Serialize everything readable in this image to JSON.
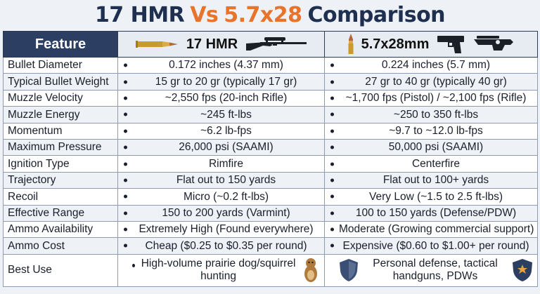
{
  "title": {
    "part1": "17 HMR",
    "vs": "Vs",
    "part2": "5.7x28",
    "part3": "Comparison"
  },
  "columns": {
    "feature": "Feature",
    "hmr": "17 HMR",
    "fn": "5.7x28mm"
  },
  "icons": {
    "hmr_cartridge": "bullet-cartridge-icon",
    "hmr_gun": "bolt-action-rifle-icon",
    "fn_cartridge": "bullet-cartridge-icon",
    "fn_gun1": "pistol-icon",
    "fn_gun2": "pdw-rifle-icon",
    "best_hmr": "prairie-dog-icon",
    "best_fn_left": "shield-icon",
    "best_fn_right": "police-badge-shield-icon"
  },
  "colors": {
    "title": "#1f2f4f",
    "accent": "#e8732a",
    "header_bg": "#2c3f63"
  },
  "rows": [
    {
      "feature": "Bullet Diameter",
      "hmr": "0.172 inches (4.37 mm)",
      "fn": "0.224 inches (5.7 mm)"
    },
    {
      "feature": "Typical Bullet Weight",
      "hmr": "15 gr to 20 gr (typically 17 gr)",
      "fn": "27 gr to 40 gr (typically 40 gr)"
    },
    {
      "feature": "Muzzle Velocity",
      "hmr": "~2,550 fps (20-inch Rifle)",
      "fn": "~1,700 fps (Pistol) / ~2,100 fps (Rifle)"
    },
    {
      "feature": "Muzzle Energy",
      "hmr": "~245 ft-lbs",
      "fn": "~250 to 350 ft-lbs"
    },
    {
      "feature": "Momentum",
      "hmr": "~6.2 lb-fps",
      "fn": "~9.7 to ~12.0 lb-fps"
    },
    {
      "feature": "Maximum Pressure",
      "hmr": "26,000 psi (SAAMI)",
      "fn": "50,000 psi (SAAMI)"
    },
    {
      "feature": "Ignition Type",
      "hmr": "Rimfire",
      "fn": "Centerfire"
    },
    {
      "feature": "Trajectory",
      "hmr": "Flat out to 150 yards",
      "fn": "Flat out to 100+ yards"
    },
    {
      "feature": "Recoil",
      "hmr": "Micro (~0.2 ft-lbs)",
      "fn": "Very Low (~1.5 to 2.5 ft-lbs)"
    },
    {
      "feature": "Effective Range",
      "hmr": "150 to 200 yards (Varmint)",
      "fn": "100 to 150 yards (Defense/PDW)"
    },
    {
      "feature": "Ammo Availability",
      "hmr": "Extremely High (Found everywhere)",
      "fn": "Moderate (Growing commercial support)"
    },
    {
      "feature": "Ammo Cost",
      "hmr": "Cheap ($0.25 to $0.35 per round)",
      "fn": "Expensive ($0.60 to $1.00+ per round)"
    }
  ],
  "best_use": {
    "feature": "Best Use",
    "hmr": "High-volume prairie dog/squirrel hunting",
    "fn": "Personal defense, tactical handguns, PDWs"
  }
}
